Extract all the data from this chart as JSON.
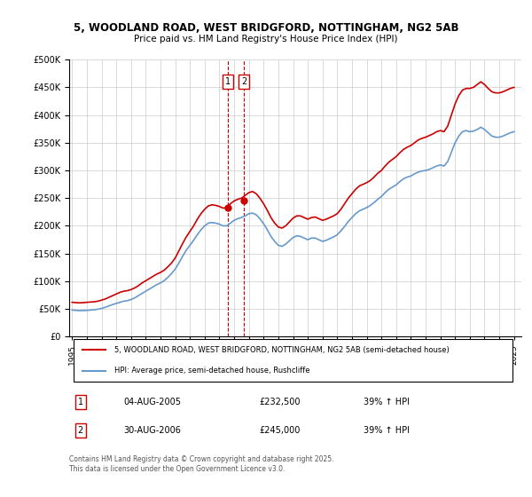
{
  "title_line1": "5, WOODLAND ROAD, WEST BRIDGFORD, NOTTINGHAM, NG2 5AB",
  "title_line2": "Price paid vs. HM Land Registry's House Price Index (HPI)",
  "ylabel_ticks": [
    "£0",
    "£50K",
    "£100K",
    "£150K",
    "£200K",
    "£250K",
    "£300K",
    "£350K",
    "£400K",
    "£450K",
    "£500K"
  ],
  "ytick_values": [
    0,
    50000,
    100000,
    150000,
    200000,
    250000,
    300000,
    350000,
    400000,
    450000,
    500000
  ],
  "xlim": [
    1995,
    2025.5
  ],
  "ylim": [
    0,
    500000
  ],
  "red_color": "#cc0000",
  "blue_color": "#6699cc",
  "marker_color_red": "#cc0000",
  "sale1_date_x": 2005.587,
  "sale2_date_x": 2006.66,
  "sale1_price": 232500,
  "sale2_price": 245000,
  "legend_line1": "5, WOODLAND ROAD, WEST BRIDGFORD, NOTTINGHAM, NG2 5AB (semi-detached house)",
  "legend_line2": "HPI: Average price, semi-detached house, Rushcliffe",
  "table_row1": [
    "1",
    "04-AUG-2005",
    "£232,500",
    "39% ↑ HPI"
  ],
  "table_row2": [
    "2",
    "30-AUG-2006",
    "£245,000",
    "39% ↑ HPI"
  ],
  "footer": "Contains HM Land Registry data © Crown copyright and database right 2025.\nThis data is licensed under the Open Government Licence v3.0.",
  "red_hpi_data": {
    "years": [
      1995.0,
      1995.25,
      1995.5,
      1995.75,
      1996.0,
      1996.25,
      1996.5,
      1996.75,
      1997.0,
      1997.25,
      1997.5,
      1997.75,
      1998.0,
      1998.25,
      1998.5,
      1998.75,
      1999.0,
      1999.25,
      1999.5,
      1999.75,
      2000.0,
      2000.25,
      2000.5,
      2000.75,
      2001.0,
      2001.25,
      2001.5,
      2001.75,
      2002.0,
      2002.25,
      2002.5,
      2002.75,
      2003.0,
      2003.25,
      2003.5,
      2003.75,
      2004.0,
      2004.25,
      2004.5,
      2004.75,
      2005.0,
      2005.25,
      2005.5,
      2005.75,
      2006.0,
      2006.25,
      2006.5,
      2006.75,
      2007.0,
      2007.25,
      2007.5,
      2007.75,
      2008.0,
      2008.25,
      2008.5,
      2008.75,
      2009.0,
      2009.25,
      2009.5,
      2009.75,
      2010.0,
      2010.25,
      2010.5,
      2010.75,
      2011.0,
      2011.25,
      2011.5,
      2011.75,
      2012.0,
      2012.25,
      2012.5,
      2012.75,
      2013.0,
      2013.25,
      2013.5,
      2013.75,
      2014.0,
      2014.25,
      2014.5,
      2014.75,
      2015.0,
      2015.25,
      2015.5,
      2015.75,
      2016.0,
      2016.25,
      2016.5,
      2016.75,
      2017.0,
      2017.25,
      2017.5,
      2017.75,
      2018.0,
      2018.25,
      2018.5,
      2018.75,
      2019.0,
      2019.25,
      2019.5,
      2019.75,
      2020.0,
      2020.25,
      2020.5,
      2020.75,
      2021.0,
      2021.25,
      2021.5,
      2021.75,
      2022.0,
      2022.25,
      2022.5,
      2022.75,
      2023.0,
      2023.25,
      2023.5,
      2023.75,
      2024.0,
      2024.25,
      2024.5,
      2024.75,
      2025.0
    ],
    "values": [
      62000,
      61500,
      61000,
      61500,
      62000,
      62500,
      63000,
      64000,
      66000,
      68000,
      71000,
      74000,
      77000,
      80000,
      82000,
      83000,
      85000,
      88000,
      92000,
      97000,
      101000,
      105000,
      109000,
      113000,
      116000,
      120000,
      126000,
      133000,
      142000,
      155000,
      168000,
      180000,
      190000,
      200000,
      212000,
      222000,
      230000,
      236000,
      238000,
      237000,
      235000,
      232000,
      233000,
      240000,
      245000,
      248000,
      250000,
      255000,
      260000,
      262000,
      258000,
      250000,
      240000,
      228000,
      215000,
      205000,
      198000,
      196000,
      200000,
      207000,
      214000,
      218000,
      218000,
      215000,
      212000,
      215000,
      216000,
      213000,
      210000,
      212000,
      215000,
      218000,
      222000,
      230000,
      240000,
      250000,
      258000,
      266000,
      272000,
      275000,
      278000,
      282000,
      288000,
      295000,
      300000,
      308000,
      315000,
      320000,
      325000,
      332000,
      338000,
      342000,
      345000,
      350000,
      355000,
      358000,
      360000,
      363000,
      366000,
      370000,
      372000,
      370000,
      380000,
      400000,
      420000,
      435000,
      445000,
      448000,
      448000,
      450000,
      455000,
      460000,
      455000,
      448000,
      442000,
      440000,
      440000,
      442000,
      445000,
      448000,
      450000
    ]
  },
  "blue_hpi_data": {
    "years": [
      1995.0,
      1995.25,
      1995.5,
      1995.75,
      1996.0,
      1996.25,
      1996.5,
      1996.75,
      1997.0,
      1997.25,
      1997.5,
      1997.75,
      1998.0,
      1998.25,
      1998.5,
      1998.75,
      1999.0,
      1999.25,
      1999.5,
      1999.75,
      2000.0,
      2000.25,
      2000.5,
      2000.75,
      2001.0,
      2001.25,
      2001.5,
      2001.75,
      2002.0,
      2002.25,
      2002.5,
      2002.75,
      2003.0,
      2003.25,
      2003.5,
      2003.75,
      2004.0,
      2004.25,
      2004.5,
      2004.75,
      2005.0,
      2005.25,
      2005.5,
      2005.75,
      2006.0,
      2006.25,
      2006.5,
      2006.75,
      2007.0,
      2007.25,
      2007.5,
      2007.75,
      2008.0,
      2008.25,
      2008.5,
      2008.75,
      2009.0,
      2009.25,
      2009.5,
      2009.75,
      2010.0,
      2010.25,
      2010.5,
      2010.75,
      2011.0,
      2011.25,
      2011.5,
      2011.75,
      2012.0,
      2012.25,
      2012.5,
      2012.75,
      2013.0,
      2013.25,
      2013.5,
      2013.75,
      2014.0,
      2014.25,
      2014.5,
      2014.75,
      2015.0,
      2015.25,
      2015.5,
      2015.75,
      2016.0,
      2016.25,
      2016.5,
      2016.75,
      2017.0,
      2017.25,
      2017.5,
      2017.75,
      2018.0,
      2018.25,
      2018.5,
      2018.75,
      2019.0,
      2019.25,
      2019.5,
      2019.75,
      2020.0,
      2020.25,
      2020.5,
      2020.75,
      2021.0,
      2021.25,
      2021.5,
      2021.75,
      2022.0,
      2022.25,
      2022.5,
      2022.75,
      2023.0,
      2023.25,
      2023.5,
      2023.75,
      2024.0,
      2024.25,
      2024.5,
      2024.75,
      2025.0
    ],
    "values": [
      48000,
      47500,
      47000,
      47200,
      47500,
      48000,
      48500,
      49500,
      51000,
      53000,
      55500,
      58000,
      60000,
      62000,
      64000,
      65000,
      67000,
      70000,
      74000,
      78000,
      82000,
      86000,
      90000,
      94000,
      97000,
      101000,
      107000,
      114000,
      122000,
      133000,
      145000,
      156000,
      165000,
      174000,
      184000,
      193000,
      200000,
      205000,
      206000,
      205000,
      203000,
      200000,
      200000,
      205000,
      210000,
      213000,
      215000,
      218000,
      222000,
      223000,
      220000,
      213000,
      204000,
      193000,
      181000,
      172000,
      165000,
      163000,
      167000,
      173000,
      179000,
      182000,
      181000,
      178000,
      175000,
      178000,
      178000,
      175000,
      172000,
      174000,
      177000,
      180000,
      184000,
      191000,
      199000,
      208000,
      215000,
      222000,
      227000,
      230000,
      233000,
      237000,
      242000,
      248000,
      253000,
      260000,
      266000,
      270000,
      274000,
      280000,
      285000,
      288000,
      290000,
      294000,
      297000,
      299000,
      300000,
      302000,
      305000,
      308000,
      310000,
      308000,
      316000,
      333000,
      350000,
      362000,
      370000,
      372000,
      370000,
      371000,
      374000,
      378000,
      374000,
      368000,
      362000,
      360000,
      360000,
      362000,
      365000,
      368000,
      370000
    ]
  }
}
